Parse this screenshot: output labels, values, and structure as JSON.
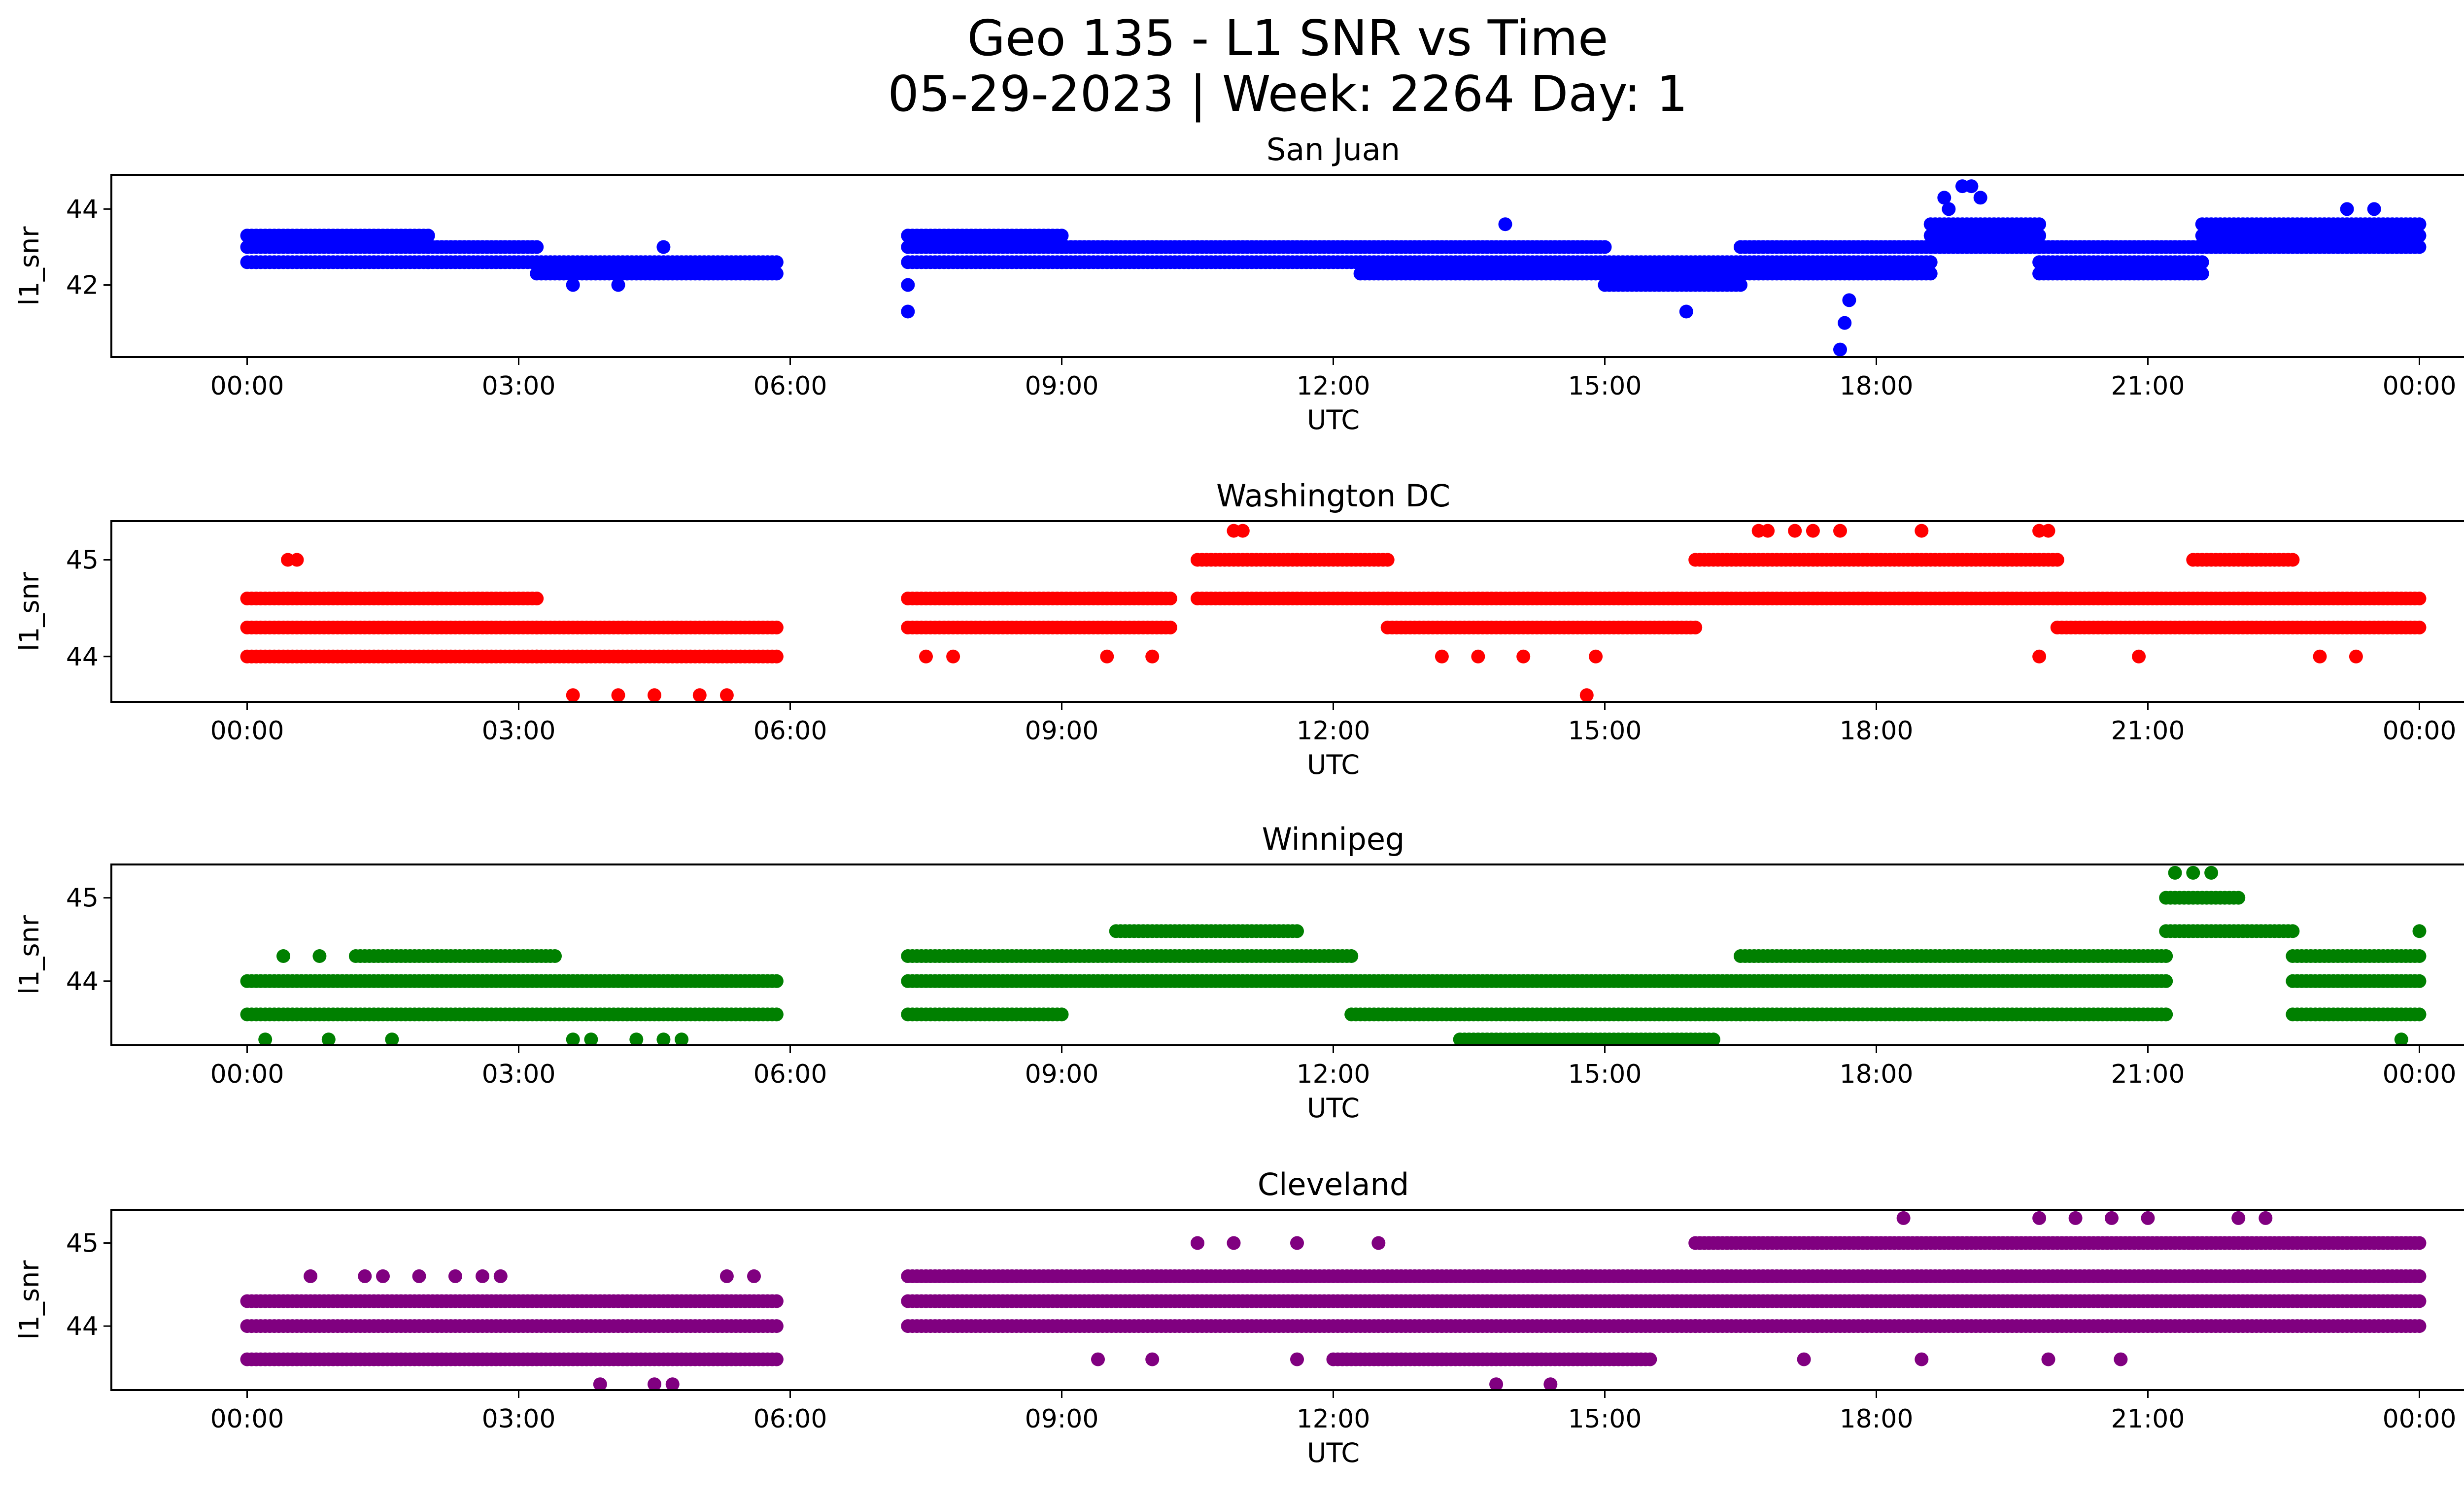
{
  "figure": {
    "title_line1": "Geo 135 - L1 SNR vs Time",
    "title_line2": "05-29-2023 | Week: 2264 Day: 1"
  },
  "chart_data": [
    {
      "type": "scatter",
      "title": "San Juan",
      "xlabel": "UTC",
      "ylabel": "l1_snr",
      "color": "#0000ff",
      "xlim": [
        -1.5,
        25.5
      ],
      "ylim": [
        40.1,
        44.9
      ],
      "xticks": [
        "00:00",
        "03:00",
        "06:00",
        "09:00",
        "12:00",
        "15:00",
        "18:00",
        "21:00",
        "00:00"
      ],
      "yticks": [
        42,
        44
      ],
      "data_gap": [
        5.85,
        7.3
      ],
      "segments": [
        {
          "x0": 0.0,
          "x1": 2.0,
          "levels": [
            43.3,
            43.0,
            42.6
          ]
        },
        {
          "x0": 2.0,
          "x1": 3.2,
          "levels": [
            43.0,
            42.6
          ]
        },
        {
          "x0": 3.2,
          "x1": 5.85,
          "levels": [
            42.6,
            42.3
          ]
        },
        {
          "x0": 7.3,
          "x1": 9.0,
          "levels": [
            43.3,
            43.0,
            42.6
          ]
        },
        {
          "x0": 9.0,
          "x1": 12.3,
          "levels": [
            43.0,
            42.6
          ]
        },
        {
          "x0": 12.3,
          "x1": 15.0,
          "levels": [
            43.0,
            42.6,
            42.3
          ]
        },
        {
          "x0": 15.0,
          "x1": 16.5,
          "levels": [
            42.6,
            42.3,
            42.0
          ]
        },
        {
          "x0": 16.5,
          "x1": 18.6,
          "levels": [
            43.0,
            42.6,
            42.3
          ]
        },
        {
          "x0": 18.6,
          "x1": 19.8,
          "levels": [
            43.6,
            43.3,
            43.0
          ]
        },
        {
          "x0": 19.8,
          "x1": 21.6,
          "levels": [
            43.0,
            42.6,
            42.3
          ]
        },
        {
          "x0": 21.6,
          "x1": 24.0,
          "levels": [
            43.6,
            43.3,
            43.0
          ]
        }
      ],
      "outliers": [
        [
          0.1,
          42.6
        ],
        [
          3.6,
          42.0
        ],
        [
          4.1,
          42.0
        ],
        [
          4.6,
          43.0
        ],
        [
          7.3,
          42.0
        ],
        [
          7.3,
          41.3
        ],
        [
          13.9,
          43.6
        ],
        [
          15.9,
          41.3
        ],
        [
          17.6,
          40.3
        ],
        [
          17.65,
          41.0
        ],
        [
          17.7,
          41.6
        ],
        [
          18.75,
          44.3
        ],
        [
          18.8,
          44.0
        ],
        [
          18.95,
          44.6
        ],
        [
          19.05,
          44.6
        ],
        [
          19.15,
          44.3
        ],
        [
          23.2,
          44.0
        ],
        [
          23.5,
          44.0
        ]
      ]
    },
    {
      "type": "scatter",
      "title": "Washington DC",
      "xlabel": "UTC",
      "ylabel": "l1_snr",
      "color": "#ff0000",
      "xlim": [
        -1.5,
        25.5
      ],
      "ylim": [
        43.53,
        45.4
      ],
      "xticks": [
        "00:00",
        "03:00",
        "06:00",
        "09:00",
        "12:00",
        "15:00",
        "18:00",
        "21:00",
        "00:00"
      ],
      "yticks": [
        44,
        45
      ],
      "data_gap": [
        5.85,
        7.3
      ],
      "segments": [
        {
          "x0": 0.0,
          "x1": 3.2,
          "levels": [
            44.6,
            44.3,
            44.0
          ]
        },
        {
          "x0": 3.2,
          "x1": 5.85,
          "levels": [
            44.3,
            44.0
          ]
        },
        {
          "x0": 7.3,
          "x1": 10.2,
          "levels": [
            44.6,
            44.3
          ]
        },
        {
          "x0": 10.5,
          "x1": 12.6,
          "levels": [
            45.0,
            44.6
          ]
        },
        {
          "x0": 12.6,
          "x1": 16.0,
          "levels": [
            44.6,
            44.3
          ]
        },
        {
          "x0": 16.0,
          "x1": 20.0,
          "levels": [
            45.0,
            44.6
          ]
        },
        {
          "x0": 20.0,
          "x1": 24.0,
          "levels": [
            44.6,
            44.3
          ]
        },
        {
          "x0": 21.5,
          "x1": 22.6,
          "levels": [
            45.0
          ]
        }
      ],
      "outliers": [
        [
          0.45,
          45.0
        ],
        [
          0.55,
          45.0
        ],
        [
          3.6,
          43.6
        ],
        [
          4.1,
          43.6
        ],
        [
          4.5,
          43.6
        ],
        [
          5.3,
          43.6
        ],
        [
          5.0,
          43.6
        ],
        [
          10.9,
          45.3
        ],
        [
          11.0,
          45.3
        ],
        [
          14.8,
          43.6
        ],
        [
          16.7,
          45.3
        ],
        [
          16.8,
          45.3
        ],
        [
          17.1,
          45.3
        ],
        [
          17.3,
          45.3
        ],
        [
          17.6,
          45.3
        ],
        [
          18.5,
          45.3
        ],
        [
          19.8,
          45.3
        ],
        [
          19.9,
          45.3
        ],
        [
          7.5,
          44.0
        ],
        [
          7.8,
          44.0
        ],
        [
          9.5,
          44.0
        ],
        [
          10.0,
          44.0
        ],
        [
          13.2,
          44.0
        ],
        [
          13.6,
          44.0
        ],
        [
          14.1,
          44.0
        ],
        [
          14.9,
          44.0
        ],
        [
          19.8,
          44.0
        ],
        [
          20.9,
          44.0
        ],
        [
          22.9,
          44.0
        ],
        [
          23.3,
          44.0
        ]
      ]
    },
    {
      "type": "scatter",
      "title": "Winnipeg",
      "xlabel": "UTC",
      "ylabel": "l1_snr",
      "color": "#008000",
      "xlim": [
        -1.5,
        25.5
      ],
      "ylim": [
        43.23,
        45.4
      ],
      "xticks": [
        "00:00",
        "03:00",
        "06:00",
        "09:00",
        "12:00",
        "15:00",
        "18:00",
        "21:00",
        "00:00"
      ],
      "yticks": [
        44,
        45
      ],
      "data_gap": [
        5.85,
        7.3
      ],
      "segments": [
        {
          "x0": 0.0,
          "x1": 5.85,
          "levels": [
            44.0,
            43.6
          ]
        },
        {
          "x0": 1.2,
          "x1": 3.4,
          "levels": [
            44.3
          ]
        },
        {
          "x0": 7.3,
          "x1": 9.0,
          "levels": [
            44.3,
            44.0,
            43.6
          ]
        },
        {
          "x0": 9.0,
          "x1": 12.2,
          "levels": [
            44.3,
            44.0
          ]
        },
        {
          "x0": 9.6,
          "x1": 11.6,
          "levels": [
            44.6
          ]
        },
        {
          "x0": 12.2,
          "x1": 16.5,
          "levels": [
            44.0,
            43.6
          ]
        },
        {
          "x0": 13.4,
          "x1": 16.2,
          "levels": [
            43.3
          ]
        },
        {
          "x0": 16.5,
          "x1": 21.2,
          "levels": [
            44.3,
            44.0,
            43.6
          ]
        },
        {
          "x0": 21.2,
          "x1": 22.0,
          "levels": [
            45.0
          ]
        },
        {
          "x0": 21.2,
          "x1": 22.6,
          "levels": [
            44.6
          ]
        },
        {
          "x0": 22.6,
          "x1": 24.0,
          "levels": [
            44.3,
            44.0,
            43.6
          ]
        }
      ],
      "outliers": [
        [
          0.2,
          43.3
        ],
        [
          0.9,
          43.3
        ],
        [
          1.6,
          43.3
        ],
        [
          3.6,
          43.3
        ],
        [
          3.8,
          43.3
        ],
        [
          4.3,
          43.3
        ],
        [
          4.6,
          43.3
        ],
        [
          4.8,
          43.3
        ],
        [
          0.4,
          44.3
        ],
        [
          0.8,
          44.3
        ],
        [
          21.3,
          45.3
        ],
        [
          21.5,
          45.3
        ],
        [
          21.7,
          45.3
        ],
        [
          23.8,
          43.3
        ],
        [
          24.0,
          44.6
        ]
      ]
    },
    {
      "type": "scatter",
      "title": "Cleveland",
      "xlabel": "UTC",
      "ylabel": "l1_snr",
      "color": "#800080",
      "xlim": [
        -1.5,
        25.5
      ],
      "ylim": [
        43.23,
        45.4
      ],
      "xticks": [
        "00:00",
        "03:00",
        "06:00",
        "09:00",
        "12:00",
        "15:00",
        "18:00",
        "21:00",
        "00:00"
      ],
      "yticks": [
        44,
        45
      ],
      "data_gap": [
        5.85,
        7.3
      ],
      "segments": [
        {
          "x0": 0.0,
          "x1": 5.85,
          "levels": [
            44.3,
            44.0,
            43.6
          ]
        },
        {
          "x0": 7.3,
          "x1": 16.0,
          "levels": [
            44.6,
            44.3,
            44.0
          ]
        },
        {
          "x0": 12.0,
          "x1": 15.5,
          "levels": [
            43.6
          ]
        },
        {
          "x0": 16.0,
          "x1": 24.0,
          "levels": [
            45.0,
            44.6,
            44.3,
            44.0
          ]
        }
      ],
      "outliers": [
        [
          0.7,
          44.6
        ],
        [
          1.3,
          44.6
        ],
        [
          1.5,
          44.6
        ],
        [
          1.9,
          44.6
        ],
        [
          2.3,
          44.6
        ],
        [
          2.6,
          44.6
        ],
        [
          2.8,
          44.6
        ],
        [
          5.3,
          44.6
        ],
        [
          5.6,
          44.6
        ],
        [
          3.9,
          43.3
        ],
        [
          4.5,
          43.3
        ],
        [
          4.7,
          43.3
        ],
        [
          13.8,
          43.3
        ],
        [
          14.4,
          43.3
        ],
        [
          10.5,
          45.0
        ],
        [
          10.9,
          45.0
        ],
        [
          11.6,
          45.0
        ],
        [
          12.5,
          45.0
        ],
        [
          18.3,
          45.3
        ],
        [
          19.8,
          45.3
        ],
        [
          20.2,
          45.3
        ],
        [
          20.6,
          45.3
        ],
        [
          21.0,
          45.3
        ],
        [
          22.0,
          45.3
        ],
        [
          22.3,
          45.3
        ],
        [
          9.4,
          43.6
        ],
        [
          10.0,
          43.6
        ],
        [
          11.6,
          43.6
        ],
        [
          17.2,
          43.6
        ],
        [
          18.5,
          43.6
        ],
        [
          19.9,
          43.6
        ],
        [
          20.7,
          43.6
        ]
      ]
    }
  ]
}
